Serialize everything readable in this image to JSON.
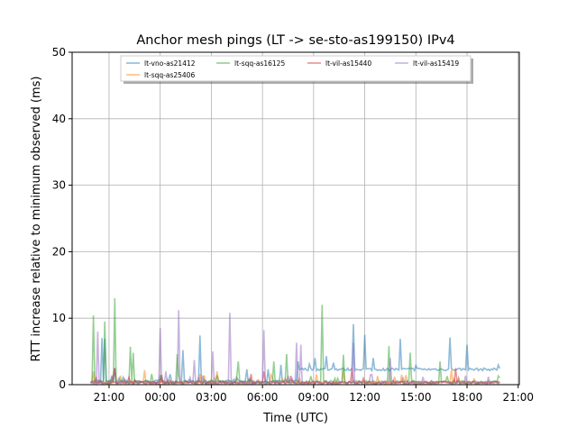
{
  "chart_data": {
    "type": "line",
    "title": "Anchor mesh pings (LT -> se-sto-as199150) IPv4",
    "xlabel": "Time (UTC)",
    "ylabel": "RTT increase relative to minimum observed (ms)",
    "xlim": [
      "18:50",
      "21:04"
    ],
    "ylim": [
      0,
      50
    ],
    "grid": true,
    "legend_placement": "top-center",
    "x_ticks": [
      "21:00",
      "00:00",
      "03:00",
      "06:00",
      "09:00",
      "12:00",
      "15:00",
      "18:00",
      "21:00"
    ],
    "y_ticks": [
      "0",
      "10",
      "20",
      "30",
      "40",
      "50"
    ],
    "data_start": "19:55",
    "data_end": "20:00",
    "series": [
      {
        "name": "lt-vno-as21412",
        "color": "#1f77b4",
        "baseline": [
          [
            "19:55",
            0.5
          ],
          [
            "08:00",
            2.3
          ]
        ],
        "spikes": [
          [
            "20:35",
            7
          ],
          [
            "20:44",
            6.9
          ],
          [
            "21:20",
            2.5
          ],
          [
            "01:21",
            5.2
          ],
          [
            "02:21",
            7.4
          ],
          [
            "05:03",
            2.3
          ],
          [
            "06:20",
            2.3
          ],
          [
            "07:04",
            3
          ],
          [
            "08:05",
            3.5
          ],
          [
            "09:05",
            4
          ],
          [
            "09:46",
            4.3
          ],
          [
            "11:18",
            9.1
          ],
          [
            "12:00",
            7.5
          ],
          [
            "12:32",
            4
          ],
          [
            "14:04",
            6.9
          ],
          [
            "16:59",
            7.1
          ],
          [
            "18:02",
            6
          ],
          [
            "19:36",
            3
          ]
        ]
      },
      {
        "name": "lt-sqq-as25406",
        "color": "#ff7f0e",
        "baseline": [
          [
            "19:55",
            0.3
          ]
        ],
        "spikes": [
          [
            "20:05",
            2
          ],
          [
            "23:04",
            2.2
          ],
          [
            "03:18",
            2
          ],
          [
            "06:30",
            1.5
          ],
          [
            "10:47",
            2.2
          ],
          [
            "14:10",
            1.5
          ],
          [
            "17:05",
            2.2
          ]
        ]
      },
      {
        "name": "lt-sqq-as16125",
        "color": "#2ca02c",
        "baseline": [
          [
            "19:55",
            0.4
          ]
        ],
        "spikes": [
          [
            "20:03",
            10.4
          ],
          [
            "20:47",
            9.5
          ],
          [
            "21:19",
            13
          ],
          [
            "22:16",
            5.7
          ],
          [
            "22:26",
            4.8
          ],
          [
            "01:02",
            4.6
          ],
          [
            "04:35",
            3.5
          ],
          [
            "06:39",
            3.5
          ],
          [
            "07:26",
            4.6
          ],
          [
            "09:30",
            12
          ],
          [
            "10:44",
            4.5
          ],
          [
            "13:26",
            5.8
          ],
          [
            "14:40",
            4.8
          ],
          [
            "16:24",
            3.5
          ],
          [
            "19:35",
            10.3
          ]
        ]
      },
      {
        "name": "lt-vil-as15440",
        "color": "#d62728",
        "baseline": [
          [
            "19:55",
            0.3
          ]
        ],
        "spikes": [
          [
            "21:18",
            2.5
          ],
          [
            "00:05",
            1.5
          ],
          [
            "06:05",
            2
          ],
          [
            "11:15",
            2.5
          ],
          [
            "17:20",
            2.5
          ],
          [
            "19:20",
            2
          ]
        ]
      },
      {
        "name": "lt-vil-as15419",
        "color": "#9467bd",
        "baseline": [
          [
            "19:55",
            0.3
          ]
        ],
        "spikes": [
          [
            "20:22",
            8
          ],
          [
            "00:01",
            8.5
          ],
          [
            "00:20",
            2
          ],
          [
            "01:05",
            11.2
          ],
          [
            "02:02",
            3.7
          ],
          [
            "03:05",
            5
          ],
          [
            "04:03",
            10.8
          ],
          [
            "06:04",
            8.2
          ],
          [
            "08:01",
            6.3
          ],
          [
            "08:17",
            6
          ],
          [
            "11:18",
            6.3
          ],
          [
            "13:32",
            4
          ],
          [
            "19:15",
            3.5
          ]
        ]
      }
    ]
  }
}
